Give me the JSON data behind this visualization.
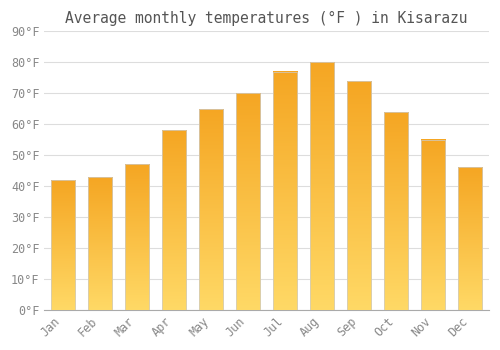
{
  "months": [
    "Jan",
    "Feb",
    "Mar",
    "Apr",
    "May",
    "Jun",
    "Jul",
    "Aug",
    "Sep",
    "Oct",
    "Nov",
    "Dec"
  ],
  "values": [
    42,
    43,
    47,
    58,
    65,
    70,
    77,
    80,
    74,
    64,
    55,
    46
  ],
  "title": "Average monthly temperatures (°F ) in Kisarazu",
  "ylim": [
    0,
    90
  ],
  "yticks": [
    0,
    10,
    20,
    30,
    40,
    50,
    60,
    70,
    80,
    90
  ],
  "ytick_labels": [
    "0°F",
    "10°F",
    "20°F",
    "30°F",
    "40°F",
    "50°F",
    "60°F",
    "70°F",
    "80°F",
    "90°F"
  ],
  "background_color": "#FFFFFF",
  "grid_color": "#DDDDDD",
  "title_fontsize": 10.5,
  "tick_fontsize": 8.5,
  "bar_width": 0.65,
  "bar_color_top": "#F5A623",
  "bar_color_bottom": "#FFD966",
  "label_color": "#888888"
}
